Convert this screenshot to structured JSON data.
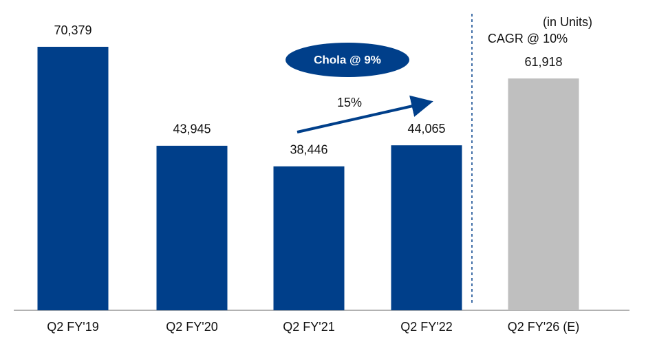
{
  "chart_data": {
    "type": "bar",
    "categories": [
      "Q2 FY'19",
      "Q2 FY'20",
      "Q2 FY'21",
      "Q2 FY'22",
      "Q2 FY'26 (E)"
    ],
    "values": [
      70379,
      43945,
      38446,
      44065,
      61918
    ],
    "value_labels": [
      "70,379",
      "43,945",
      "38,446",
      "44,065",
      "61,918"
    ],
    "colors": [
      "#003f8a",
      "#003f8a",
      "#003f8a",
      "#003f8a",
      "#bfbfbf"
    ],
    "annotations": [
      "(in Units)",
      "CAGR @ 10%",
      "Chola @ 9%",
      "15%"
    ]
  }
}
